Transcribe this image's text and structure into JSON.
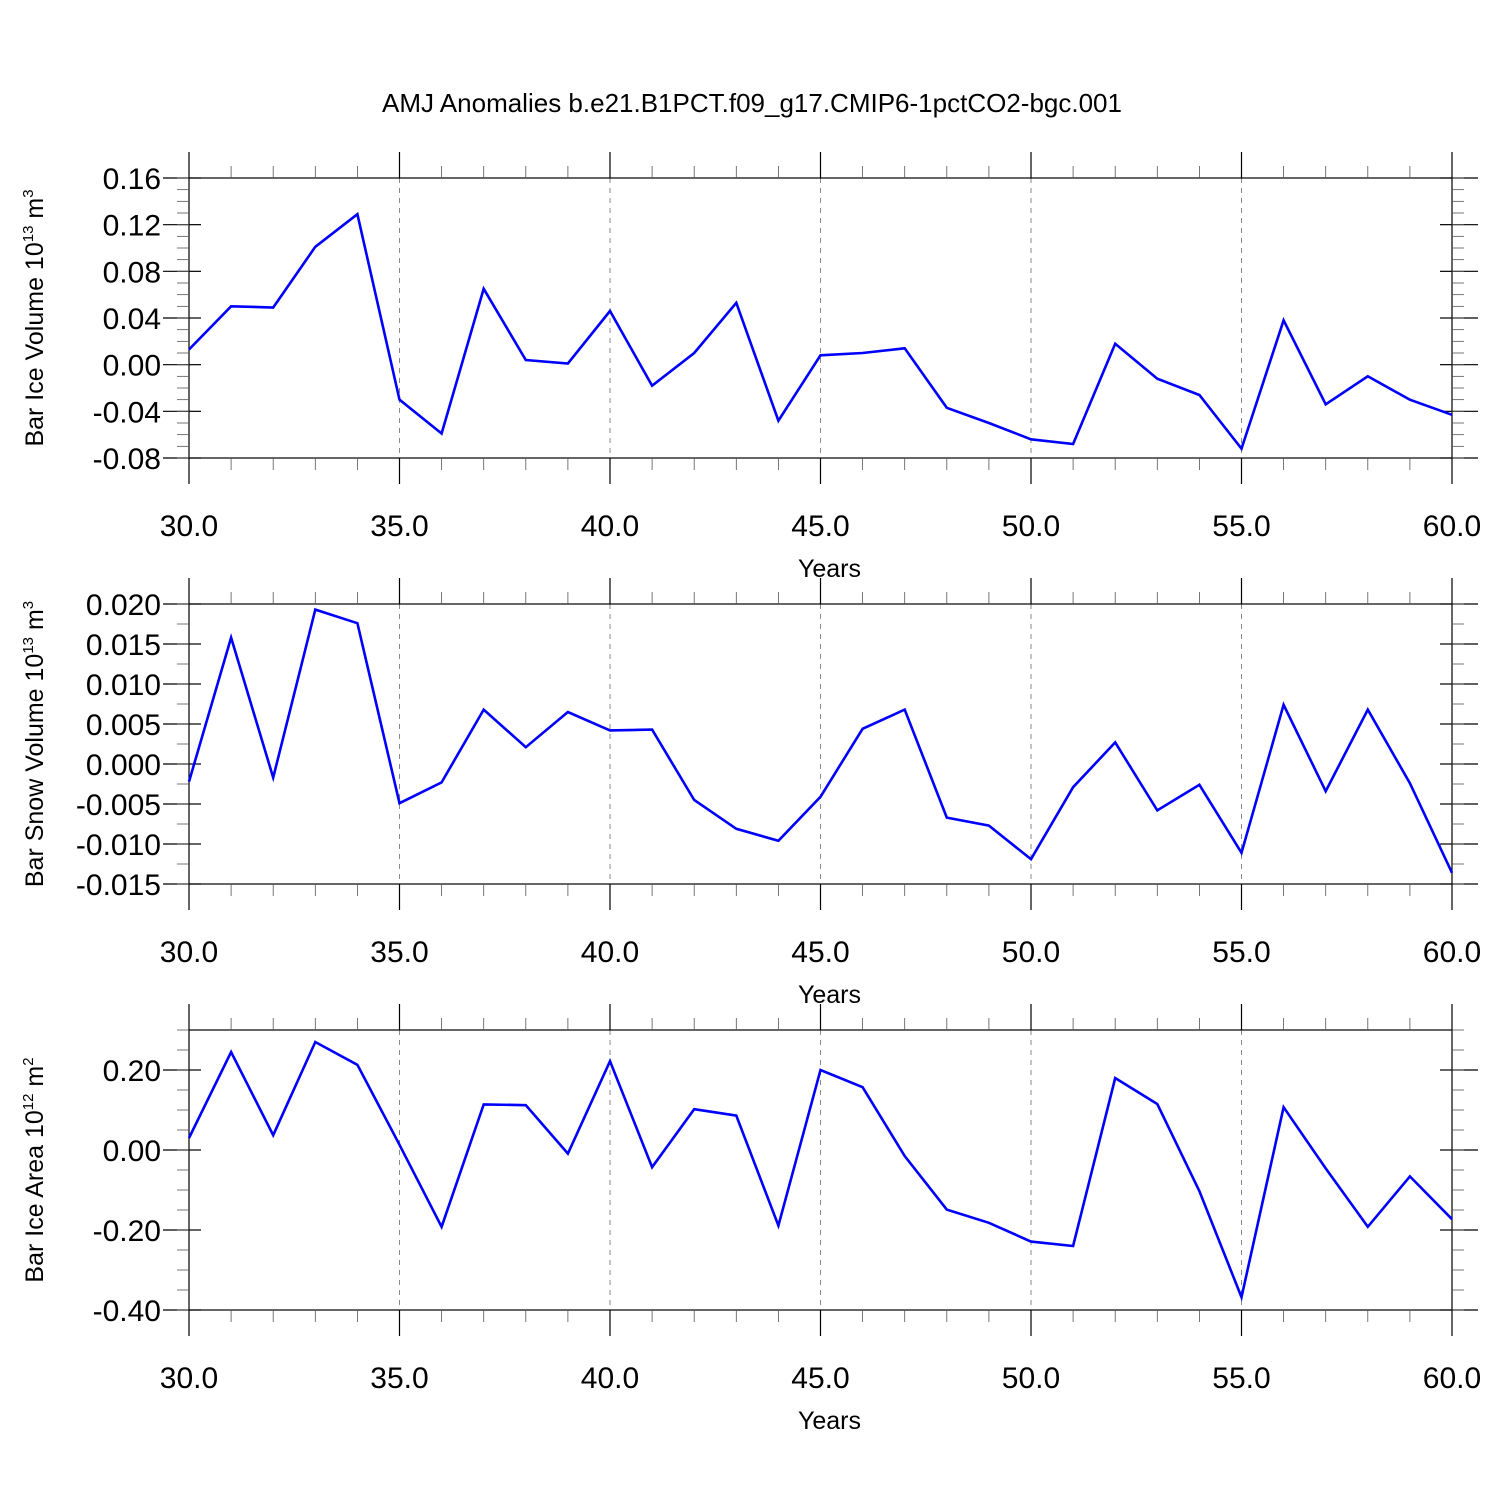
{
  "title": "AMJ Anomalies b.e21.B1PCT.f09_g17.CMIP6-1pctCO2-bgc.001",
  "chart_data": [
    {
      "type": "line",
      "ylabel": {
        "prefix": "Bar Ice Volume 10",
        "sup1": "13",
        "mid": " m",
        "sup2": "3"
      },
      "xlabel": "Years",
      "xlim": [
        30,
        60
      ],
      "ylim": [
        -0.08,
        0.16
      ],
      "xticks": [
        30,
        35,
        40,
        45,
        50,
        55,
        60
      ],
      "xtick_labels": [
        "30.0",
        "35.0",
        "40.0",
        "45.0",
        "50.0",
        "55.0",
        "60.0"
      ],
      "yticks": [
        -0.08,
        -0.04,
        0.0,
        0.04,
        0.08,
        0.12,
        0.16
      ],
      "ytick_labels": [
        "-0.08",
        "-0.04",
        "0.00",
        "0.04",
        "0.08",
        "0.12",
        "0.16"
      ],
      "line_color": "#0000ff",
      "x": [
        30,
        31,
        32,
        33,
        34,
        35,
        36,
        37,
        38,
        39,
        40,
        41,
        42,
        43,
        44,
        45,
        46,
        47,
        48,
        49,
        50,
        51,
        52,
        53,
        54,
        55,
        56,
        57,
        58,
        59,
        60
      ],
      "series": [
        {
          "values": [
            0.013,
            0.05,
            0.049,
            0.101,
            0.129,
            -0.03,
            -0.059,
            0.065,
            0.004,
            0.001,
            0.046,
            -0.018,
            0.01,
            0.053,
            -0.048,
            0.008,
            0.01,
            0.014,
            -0.037,
            -0.05,
            -0.064,
            -0.068,
            0.018,
            -0.012,
            -0.026,
            -0.072,
            0.038,
            -0.034,
            -0.01,
            -0.03,
            -0.043
          ]
        }
      ]
    },
    {
      "type": "line",
      "ylabel": {
        "prefix": "Bar Snow Volume 10",
        "sup1": "13",
        "mid": " m",
        "sup2": "3"
      },
      "xlabel": "Years",
      "xlim": [
        30,
        60
      ],
      "ylim": [
        -0.015,
        0.02
      ],
      "xticks": [
        30,
        35,
        40,
        45,
        50,
        55,
        60
      ],
      "xtick_labels": [
        "30.0",
        "35.0",
        "40.0",
        "45.0",
        "50.0",
        "55.0",
        "60.0"
      ],
      "yticks": [
        -0.015,
        -0.01,
        -0.005,
        0.0,
        0.005,
        0.01,
        0.015,
        0.02
      ],
      "ytick_labels": [
        "-0.015",
        "-0.010",
        "-0.005",
        "0.000",
        "0.005",
        "0.010",
        "0.015",
        "0.020"
      ],
      "line_color": "#0000ff",
      "x": [
        30,
        31,
        32,
        33,
        34,
        35,
        36,
        37,
        38,
        39,
        40,
        41,
        42,
        43,
        44,
        45,
        46,
        47,
        48,
        49,
        50,
        51,
        52,
        53,
        54,
        55,
        56,
        57,
        58,
        59,
        60
      ],
      "series": [
        {
          "values": [
            -0.0022,
            0.0158,
            -0.0017,
            0.0193,
            0.0176,
            -0.0049,
            -0.0023,
            0.0068,
            0.0021,
            0.0065,
            0.0042,
            0.0043,
            -0.0045,
            -0.0081,
            -0.0096,
            -0.0041,
            0.0044,
            0.0068,
            -0.0067,
            -0.0077,
            -0.0119,
            -0.0029,
            0.0027,
            -0.0058,
            -0.0026,
            -0.0111,
            0.0074,
            -0.0034,
            0.0068,
            -0.0024,
            -0.0136
          ]
        }
      ]
    },
    {
      "type": "line",
      "ylabel": {
        "prefix": "Bar Ice Area 10",
        "sup1": "12",
        "mid": " m",
        "sup2": "2"
      },
      "xlabel": "Years",
      "xlim": [
        30,
        60
      ],
      "ylim": [
        -0.4,
        0.3
      ],
      "xticks": [
        30,
        35,
        40,
        45,
        50,
        55,
        60
      ],
      "xtick_labels": [
        "30.0",
        "35.0",
        "40.0",
        "45.0",
        "50.0",
        "55.0",
        "60.0"
      ],
      "yticks": [
        -0.4,
        -0.2,
        0.0,
        0.2
      ],
      "ytick_labels": [
        "-0.40",
        "-0.20",
        "0.00",
        "0.20"
      ],
      "line_color": "#0000ff",
      "x": [
        30,
        31,
        32,
        33,
        34,
        35,
        36,
        37,
        38,
        39,
        40,
        41,
        42,
        43,
        44,
        45,
        46,
        47,
        48,
        49,
        50,
        51,
        52,
        53,
        54,
        55,
        56,
        57,
        58,
        59,
        60
      ],
      "series": [
        {
          "values": [
            0.03,
            0.245,
            0.037,
            0.27,
            0.213,
            0.013,
            -0.192,
            0.114,
            0.112,
            -0.009,
            0.222,
            -0.043,
            0.102,
            0.086,
            -0.189,
            0.2,
            0.157,
            -0.015,
            -0.149,
            -0.182,
            -0.229,
            -0.24,
            0.18,
            0.115,
            -0.103,
            -0.368,
            0.107,
            -0.046,
            -0.192,
            -0.066,
            -0.173
          ]
        }
      ]
    }
  ]
}
